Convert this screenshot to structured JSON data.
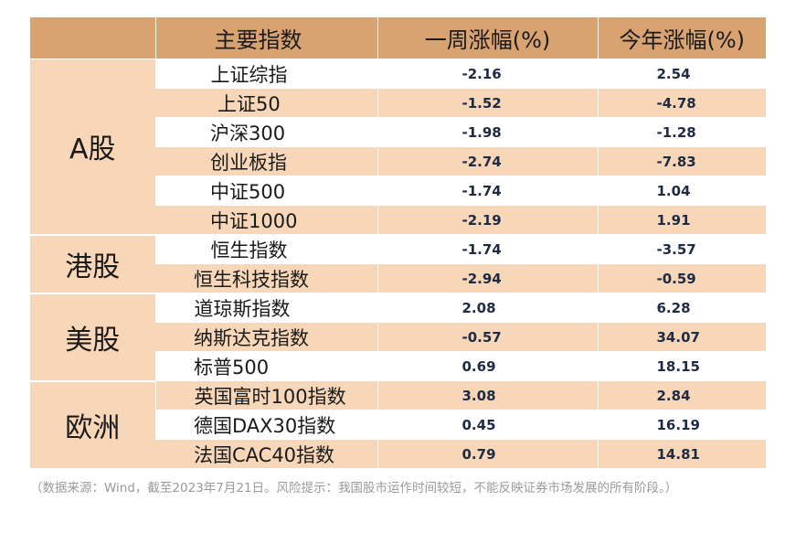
{
  "headers": {
    "index": "主要指数",
    "week": "一周涨幅(%)",
    "year": "今年涨幅(%)"
  },
  "groups": [
    {
      "region": "A股",
      "rows": [
        {
          "name": "上证综指",
          "week": "-2.16",
          "year": "2.54"
        },
        {
          "name": "上证50",
          "week": "-1.52",
          "year": "-4.78"
        },
        {
          "name": "沪深300",
          "week": "-1.98",
          "year": "-1.28"
        },
        {
          "name": "创业板指",
          "week": "-2.74",
          "year": "-7.83"
        },
        {
          "name": "中证500",
          "week": "-1.74",
          "year": "1.04"
        },
        {
          "name": "中证1000",
          "week": "-2.19",
          "year": "1.91"
        }
      ]
    },
    {
      "region": "港股",
      "rows": [
        {
          "name": "恒生指数",
          "week": "-1.74",
          "year": "-3.57"
        },
        {
          "name": "恒生科技指数",
          "week": "-2.94",
          "year": "-0.59"
        }
      ]
    },
    {
      "region": "美股",
      "rows": [
        {
          "name": "道琼斯指数",
          "week": "2.08",
          "year": "6.28"
        },
        {
          "name": "纳斯达克指数",
          "week": "-0.57",
          "year": "34.07"
        },
        {
          "name": "标普500",
          "week": "0.69",
          "year": "18.15"
        }
      ]
    },
    {
      "region": "欧洲",
      "rows": [
        {
          "name": "英国富时100指数",
          "week": "3.08",
          "year": "2.84"
        },
        {
          "name": "德国DAX30指数",
          "week": "0.45",
          "year": "16.19"
        },
        {
          "name": "法国CAC40指数",
          "week": "0.79",
          "year": "14.81"
        }
      ]
    }
  ],
  "footnote": "（数据来源：Wind，截至2023年7月21日。风险提示：我国股市运作时间较短，不能反映证券市场发展的所有阶段。）"
}
